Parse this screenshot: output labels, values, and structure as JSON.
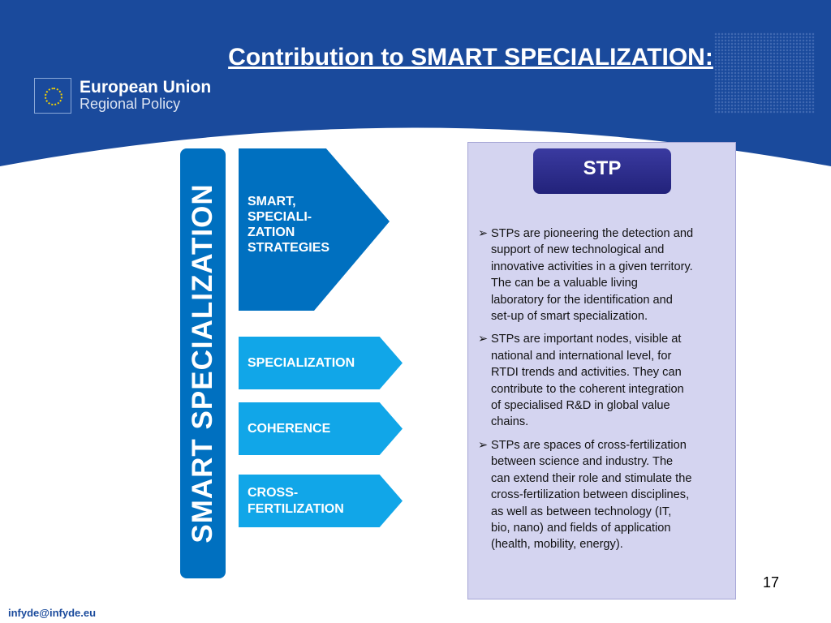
{
  "title": "Contribution to SMART SPECIALIZATION:",
  "logo": {
    "line1": "European Union",
    "line2": "Regional Policy"
  },
  "vertical_label": "SMART SPECIALIZATION",
  "arrows": [
    "SMART,\nSPECIALI-\nZATION\nSTRATEGIES",
    "SPECIALIZATION",
    "COHERENCE",
    "CROSS-\nFERTILIZATION"
  ],
  "stp": {
    "heading": "STP",
    "bullet_icon": "➢",
    "bullets": [
      "STPs are pioneering the detection and\nsupport of new technological and\ninnovative activities in a given territory.\nThe can be a valuable living\nlaboratory for the identification and\nset-up of smart specialization.",
      "STPs are important nodes, visible at\nnational and international level, for\nRTDI trends and activities. They can\ncontribute to the coherent integration\nof specialised R&D in global value\nchains.",
      "STPs are spaces of cross-fertilization\nbetween science and industry. The\ncan extend their role and stimulate the\ncross-fertilization between disciplines,\nas well as between technology (IT,\nbio, nano)  and fields of application\n(health, mobility, energy)."
    ]
  },
  "page_number": "17",
  "footer_email": "infyde@infyde.eu",
  "colors": {
    "header": "#1a4a9c",
    "dark_blue": "#0070c0",
    "cyan": "#11a6e8",
    "box": "#d4d4f0",
    "stp": "#2a2a8a"
  }
}
